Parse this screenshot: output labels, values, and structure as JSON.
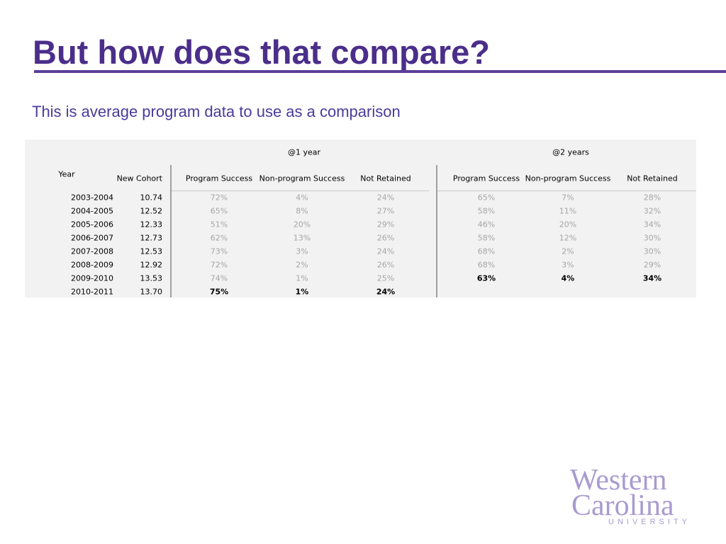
{
  "header": {
    "title": "But how does that compare?",
    "subtitle": "This is average program data to use as a comparison"
  },
  "table": {
    "groups": [
      "@1 year",
      "@2 years"
    ],
    "year_header": "Year",
    "columns": [
      "New Cohort",
      "Program Success",
      "Non-program Success",
      "Not Retained",
      "Program Success",
      "Non-program Success",
      "Not Retained"
    ],
    "rows": [
      [
        "2003-2004",
        "10.74",
        "72%",
        "4%",
        "24%",
        "65%",
        "7%",
        "28%"
      ],
      [
        "2004-2005",
        "12.52",
        "65%",
        "8%",
        "27%",
        "58%",
        "11%",
        "32%"
      ],
      [
        "2005-2006",
        "12.33",
        "51%",
        "20%",
        "29%",
        "46%",
        "20%",
        "34%"
      ],
      [
        "2006-2007",
        "12.73",
        "62%",
        "13%",
        "26%",
        "58%",
        "12%",
        "30%"
      ],
      [
        "2007-2008",
        "12.53",
        "73%",
        "3%",
        "24%",
        "68%",
        "2%",
        "30%"
      ],
      [
        "2008-2009",
        "12.92",
        "72%",
        "2%",
        "26%",
        "68%",
        "3%",
        "29%"
      ],
      [
        "2009-2010",
        "13.53",
        "74%",
        "1%",
        "25%",
        "63%",
        "4%",
        "34%"
      ],
      [
        "2010-2011",
        "13.70",
        "75%",
        "1%",
        "24%"
      ]
    ]
  },
  "logo": {
    "line1": "Western",
    "line2": "Carolina",
    "line3": "UNIVERSITY"
  }
}
